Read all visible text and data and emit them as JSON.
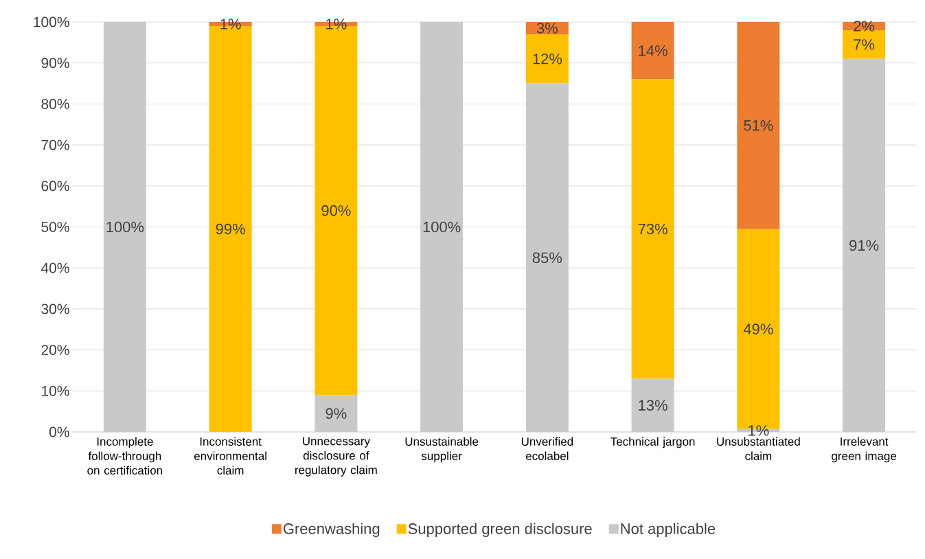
{
  "chart_data": {
    "type": "bar",
    "stacked": true,
    "categories": [
      "Incomplete follow-through on certification",
      "Inconsistent environmental claim",
      "Unnecessary disclosure of regulatory claim",
      "Unsustainable supplier",
      "Unverified ecolabel",
      "Technical jargon",
      "Unsubstantiated claim",
      "Irrelevant green image"
    ],
    "series": [
      {
        "name": "Not applicable",
        "color": "#c9c9c9",
        "values": [
          100,
          0,
          9,
          100,
          85,
          13,
          0.7,
          91
        ],
        "value_labels": [
          "100%",
          null,
          "9%",
          "100%",
          "85%",
          "13%",
          "1%",
          "91%"
        ]
      },
      {
        "name": "Supported green disclosure",
        "color": "#ffc000",
        "values": [
          0,
          99,
          90,
          0,
          12,
          73,
          48.8,
          7
        ],
        "value_labels": [
          null,
          "99%",
          "90%",
          null,
          "12%",
          "73%",
          "49%",
          "7%"
        ]
      },
      {
        "name": "Greenwashing",
        "color": "#ed7d31",
        "values": [
          0,
          1,
          1,
          0,
          3,
          14,
          50.5,
          2
        ],
        "value_labels": [
          null,
          "1%",
          "1%",
          null,
          "3%",
          "14%",
          "51%",
          "2%"
        ]
      }
    ],
    "ylim": [
      0,
      100
    ],
    "yticks": [
      {
        "value": 0,
        "label": "0%"
      },
      {
        "value": 10,
        "label": "10%"
      },
      {
        "value": 20,
        "label": "20%"
      },
      {
        "value": 30,
        "label": "30%"
      },
      {
        "value": 40,
        "label": "40%"
      },
      {
        "value": 50,
        "label": "50%"
      },
      {
        "value": 60,
        "label": "60%"
      },
      {
        "value": 70,
        "label": "70%"
      },
      {
        "value": 80,
        "label": "80%"
      },
      {
        "value": 90,
        "label": "90%"
      },
      {
        "value": 100,
        "label": "100%"
      }
    ],
    "grid": "y",
    "legend": "bottom"
  }
}
